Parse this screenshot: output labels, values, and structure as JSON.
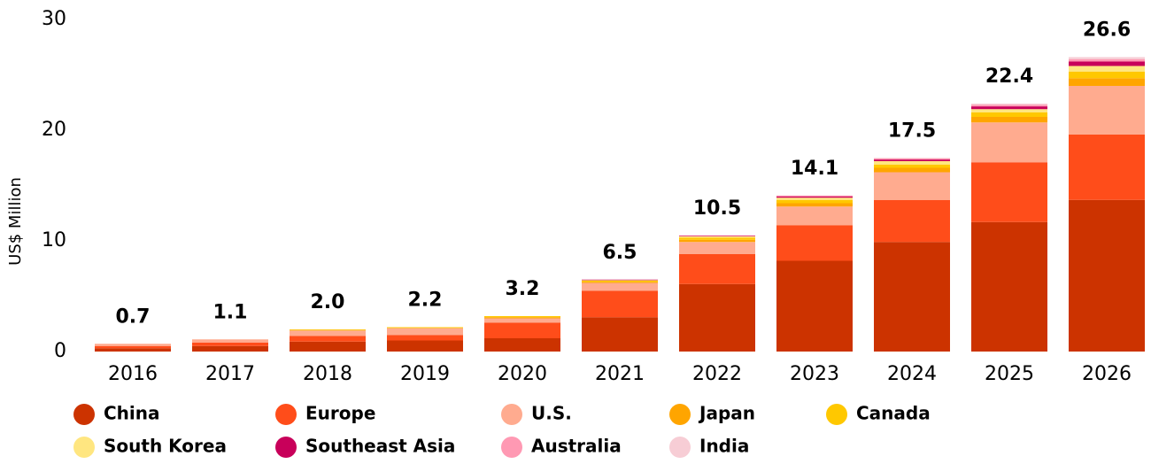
{
  "chart_data": {
    "type": "stacked_bar",
    "y_label": "US$ Million",
    "categories": [
      "2016",
      "2017",
      "2018",
      "2019",
      "2020",
      "2021",
      "2022",
      "2023",
      "2024",
      "2025",
      "2026"
    ],
    "series": [
      {
        "name": "China",
        "color": "#cc3300",
        "values": [
          0.3,
          0.5,
          0.9,
          1.0,
          1.2,
          3.1,
          6.1,
          8.2,
          9.9,
          11.7,
          13.7
        ]
      },
      {
        "name": "Europe",
        "color": "#ff4d1a",
        "values": [
          0.2,
          0.3,
          0.5,
          0.5,
          1.4,
          2.4,
          2.7,
          3.2,
          3.8,
          5.4,
          5.9
        ]
      },
      {
        "name": "U.S.",
        "color": "#ffab8f",
        "values": [
          0.2,
          0.3,
          0.5,
          0.6,
          0.4,
          0.7,
          1.1,
          1.7,
          2.5,
          3.6,
          4.4
        ]
      },
      {
        "name": "Japan",
        "color": "#ffa500",
        "values": [
          0,
          0,
          0.05,
          0.05,
          0.1,
          0.1,
          0.2,
          0.3,
          0.4,
          0.5,
          0.7
        ]
      },
      {
        "name": "Canada",
        "color": "#ffc800",
        "values": [
          0,
          0,
          0.05,
          0.05,
          0.1,
          0.1,
          0.2,
          0.3,
          0.3,
          0.4,
          0.6
        ]
      },
      {
        "name": "South Korea",
        "color": "#ffe680",
        "values": [
          0,
          0,
          0,
          0,
          0,
          0.05,
          0.1,
          0.2,
          0.3,
          0.3,
          0.5
        ]
      },
      {
        "name": "Southeast Asia",
        "color": "#c8005a",
        "values": [
          0,
          0,
          0,
          0,
          0,
          0.05,
          0.05,
          0.1,
          0.15,
          0.25,
          0.4
        ]
      },
      {
        "name": "Australia",
        "color": "#ff99b3",
        "values": [
          0,
          0,
          0,
          0,
          0,
          0,
          0.05,
          0.1,
          0.1,
          0.15,
          0.2
        ]
      },
      {
        "name": "India",
        "color": "#f7cdd5",
        "values": [
          0,
          0,
          0,
          0,
          0,
          0,
          0,
          0,
          0.05,
          0.1,
          0.2
        ]
      }
    ],
    "totals": [
      0.7,
      1.1,
      2.0,
      2.2,
      3.2,
      6.5,
      10.5,
      14.1,
      17.5,
      22.4,
      26.6
    ],
    "total_labels": [
      "0.7",
      "1.1",
      "2.0",
      "2.2",
      "3.2",
      "6.5",
      "10.5",
      "14.1",
      "17.5",
      "22.4",
      "26.6"
    ],
    "ylim": [
      0,
      30
    ],
    "yticks": [
      0,
      10,
      20,
      30
    ],
    "grid": false
  }
}
